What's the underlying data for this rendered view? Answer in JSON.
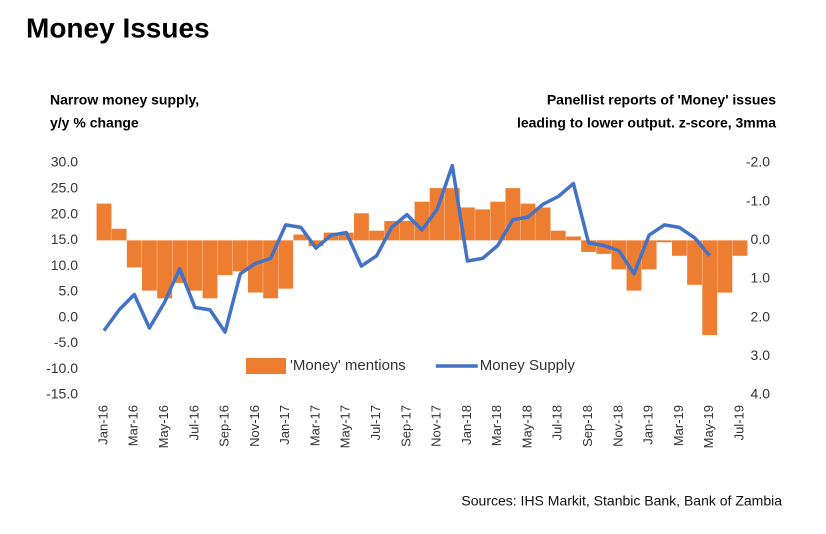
{
  "chart_data": {
    "type": "combo",
    "title": "Money Issues",
    "y_label": [
      "Narrow money supply,",
      "y/y % change"
    ],
    "y2_label": [
      "Panellist reports of 'Money' issues",
      "leading to lower output. z-score, 3mma"
    ],
    "source": "Sources: IHS Markit, Stanbic Bank, Bank of Zambia",
    "categories": [
      "Jan-16",
      null,
      "Mar-16",
      null,
      "May-16",
      null,
      "Jul-16",
      null,
      "Sep-16",
      null,
      "Nov-16",
      null,
      "Jan-17",
      null,
      "Mar-17",
      null,
      "May-17",
      null,
      "Jul-17",
      null,
      "Sep-17",
      null,
      "Nov-17",
      null,
      "Jan-18",
      null,
      "Mar-18",
      null,
      "May-18",
      null,
      "Jul-18",
      null,
      "Sep-18",
      null,
      "Nov-18",
      null,
      "Jan-19",
      null,
      "Mar-19",
      null,
      "May-19",
      null,
      "Jul-19"
    ],
    "series": [
      {
        "name": "'Money' mentions",
        "type": "bar",
        "axis": "y2",
        "color": "#ed7d31",
        "values": [
          -0.95,
          -0.3,
          0.7,
          1.3,
          1.5,
          1.1,
          1.3,
          1.5,
          0.9,
          0.8,
          1.35,
          1.5,
          1.25,
          -0.15,
          0.15,
          -0.2,
          -0.2,
          -0.7,
          -0.25,
          -0.5,
          -0.5,
          -1.0,
          -1.35,
          -1.35,
          -0.85,
          -0.8,
          -1.0,
          -1.35,
          -0.95,
          -0.85,
          -0.25,
          -0.1,
          0.3,
          0.35,
          0.75,
          1.3,
          0.75,
          0.05,
          0.4,
          1.15,
          2.45,
          1.35,
          0.4
        ]
      },
      {
        "name": "Money Supply",
        "type": "line",
        "color": "#4472c4",
        "values": [
          -2.5,
          1.5,
          4.5,
          -2.0,
          3.0,
          9.5,
          2.0,
          1.5,
          -2.8,
          8.5,
          10.5,
          11.5,
          18.0,
          17.5,
          13.5,
          16.0,
          16.5,
          10.0,
          12.0,
          17.5,
          20.0,
          17.0,
          21.0,
          29.5,
          11.0,
          11.5,
          14.0,
          19.0,
          19.5,
          22.0,
          23.5,
          26.0,
          14.5,
          14.0,
          13.0,
          8.5,
          16.0,
          18.0,
          17.5,
          15.5,
          12.0,
          null,
          null
        ]
      }
    ],
    "ylim": [
      -15,
      30
    ],
    "yticks": [
      {
        "value": 30,
        "label": "30.0"
      },
      {
        "value": 25,
        "label": "25.0"
      },
      {
        "value": 20,
        "label": "20.0"
      },
      {
        "value": 15,
        "label": "15.0"
      },
      {
        "value": 10,
        "label": "10.0"
      },
      {
        "value": 5,
        "label": "5.0"
      },
      {
        "value": 0,
        "label": "0.0"
      },
      {
        "value": -5,
        "label": "-5.0"
      },
      {
        "value": -10,
        "label": "-10.0"
      },
      {
        "value": -15,
        "label": "-15.0"
      }
    ],
    "y2lim": [
      4,
      -2
    ],
    "y2ticks": [
      {
        "value": -2,
        "label": "-2.0"
      },
      {
        "value": -1,
        "label": "-1.0"
      },
      {
        "value": 0,
        "label": "0.0"
      },
      {
        "value": 1,
        "label": "1.0"
      },
      {
        "value": 2,
        "label": "2.0"
      },
      {
        "value": 3,
        "label": "3.0"
      },
      {
        "value": 4,
        "label": "4.0"
      }
    ],
    "legend": "inside-bottom"
  }
}
